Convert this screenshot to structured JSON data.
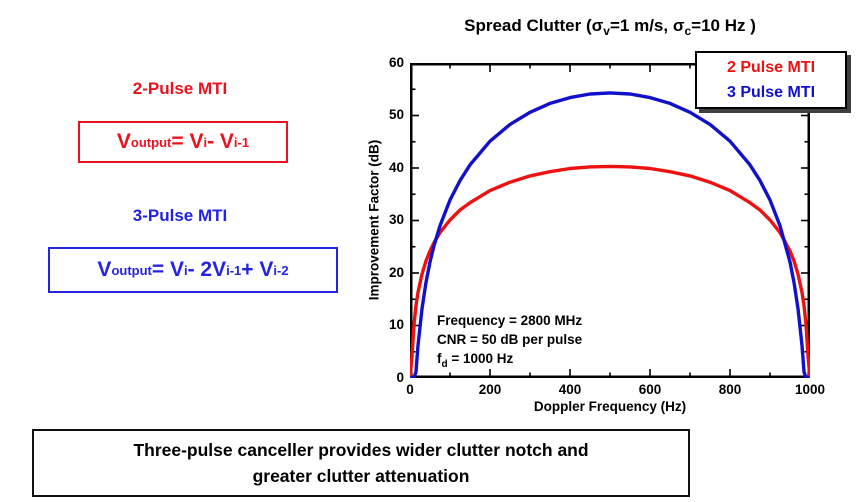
{
  "left_panel": {
    "mti2": {
      "heading": "2-Pulse MTI",
      "formula": {
        "v": "V",
        "out": "output",
        "eq": " = V",
        "i": "i",
        "minus": " - V",
        "im1": "i-1"
      }
    },
    "mti3": {
      "heading": "3-Pulse MTI",
      "formula": {
        "v": "V",
        "out": "output",
        "eq": " = V",
        "i": "i",
        "m2": " - 2V",
        "im1": "i-1",
        "plus": " + V",
        "im2": "i-2"
      }
    }
  },
  "chart": {
    "title_segments": {
      "t1": "Spread Clutter (",
      "sigma1": "σ",
      "s1": "v",
      "t2": "=1 m/s, ",
      "sigma2": "σ",
      "s2": "c",
      "t3": "=10 Hz )"
    },
    "xlabel": "Doppler Frequency (Hz)",
    "ylabel": "Improvement Factor (dB)",
    "annotations": {
      "line1": "Frequency = 2800 MHz",
      "line2": "CNR = 50 dB per pulse",
      "line3_f": "f",
      "line3_sub": "d",
      "line3_rest": " = 1000 Hz"
    }
  },
  "chart_data": {
    "type": "line",
    "title": "Spread Clutter (σv=1 m/s, σc=10 Hz )",
    "xlabel": "Doppler Frequency (Hz)",
    "ylabel": "Improvement Factor (dB)",
    "xlim": [
      0,
      1000
    ],
    "ylim": [
      0,
      60
    ],
    "x_ticks": [
      0,
      200,
      400,
      600,
      800,
      1000
    ],
    "y_ticks": [
      0,
      10,
      20,
      30,
      40,
      50,
      60
    ],
    "grid": false,
    "legend_position": "top-right",
    "x": [
      0,
      5,
      10,
      15,
      20,
      30,
      40,
      50,
      60,
      75,
      100,
      125,
      150,
      200,
      250,
      300,
      350,
      400,
      450,
      500,
      550,
      600,
      650,
      700,
      750,
      800,
      850,
      875,
      900,
      925,
      950,
      960,
      970,
      980,
      985,
      990,
      995,
      1000
    ],
    "series": [
      {
        "name": "2 Pulse MTI",
        "color": "#ee1111",
        "values": [
          0,
          4.2,
          10.2,
          13.8,
          16.3,
          19.8,
          22.3,
          24.2,
          25.8,
          27.7,
          30.1,
          32.0,
          33.4,
          35.7,
          37.3,
          38.5,
          39.3,
          39.9,
          40.2,
          40.3,
          40.2,
          39.9,
          39.3,
          38.5,
          37.3,
          35.7,
          33.4,
          32.0,
          30.1,
          27.7,
          24.2,
          22.3,
          19.8,
          16.3,
          13.8,
          10.2,
          4.2,
          0
        ]
      },
      {
        "name": "3 Pulse MTI",
        "color": "#1111cc",
        "values": [
          0,
          0,
          0,
          1.2,
          6.2,
          13.2,
          18.2,
          22.1,
          25.2,
          29.0,
          33.9,
          37.6,
          40.6,
          45.1,
          48.3,
          50.6,
          52.3,
          53.4,
          54.1,
          54.3,
          54.1,
          53.4,
          52.3,
          50.6,
          48.3,
          45.1,
          40.6,
          37.6,
          33.9,
          29.0,
          22.1,
          18.2,
          13.2,
          6.2,
          1.2,
          0,
          0,
          0
        ]
      }
    ],
    "annotations": [
      "Frequency = 2800 MHz",
      "CNR = 50 dB per pulse",
      "fd = 1000 Hz"
    ]
  },
  "colors": {
    "red": "#ee1111",
    "blue": "#1111cc",
    "axis": "#000000"
  },
  "caption": {
    "line1": "Three-pulse canceller provides wider clutter notch and",
    "line2": "greater clutter attenuation"
  }
}
